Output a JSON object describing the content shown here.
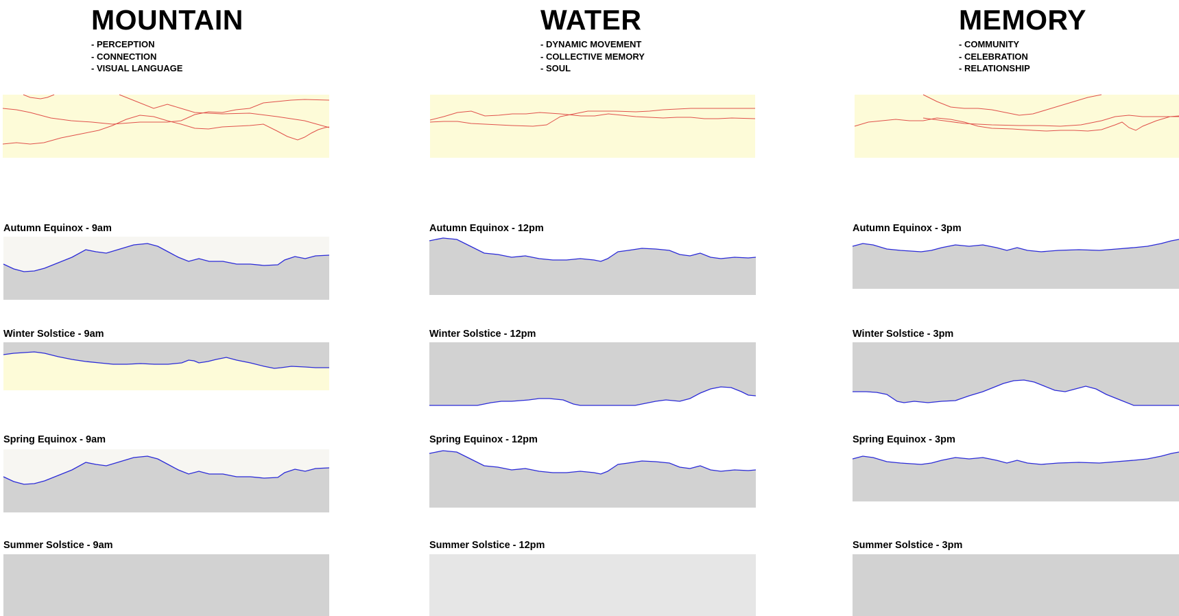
{
  "columns": [
    {
      "title": "MOUNTAIN",
      "bullets": [
        "- PERCEPTION",
        "- CONNECTION",
        "- VISUAL LANGUAGE"
      ]
    },
    {
      "title": "WATER",
      "bullets": [
        "- DYNAMIC MOVEMENT",
        "- COLLECTIVE MEMORY",
        "- SOUL"
      ]
    },
    {
      "title": "MEMORY",
      "bullets": [
        "- COMMUNITY",
        "- CELEBRATION",
        "- RELATIONSHIP"
      ]
    }
  ],
  "colors": {
    "strip_fill": "#fdfbd8",
    "strip_line": "#e0504a",
    "shade_fill": "#d2d2d2",
    "profile_line": "#2a2ad8",
    "sky_fill": "#f7f6f2"
  },
  "panels": [
    {
      "label": "Autumn Equinox - 9am"
    },
    {
      "label": "Autumn Equinox - 12pm"
    },
    {
      "label": "Autumn Equinox - 3pm"
    },
    {
      "label": "Winter Solstice - 9am"
    },
    {
      "label": "Winter Solstice - 12pm"
    },
    {
      "label": "Winter Solstice - 3pm"
    },
    {
      "label": "Spring Equinox - 9am"
    },
    {
      "label": "Spring Equinox - 12pm"
    },
    {
      "label": "Spring Equinox - 3pm"
    },
    {
      "label": "Summer Solstice - 9am"
    },
    {
      "label": "Summer Solstice - 12pm"
    },
    {
      "label": "Summer Solstice - 3pm"
    }
  ]
}
